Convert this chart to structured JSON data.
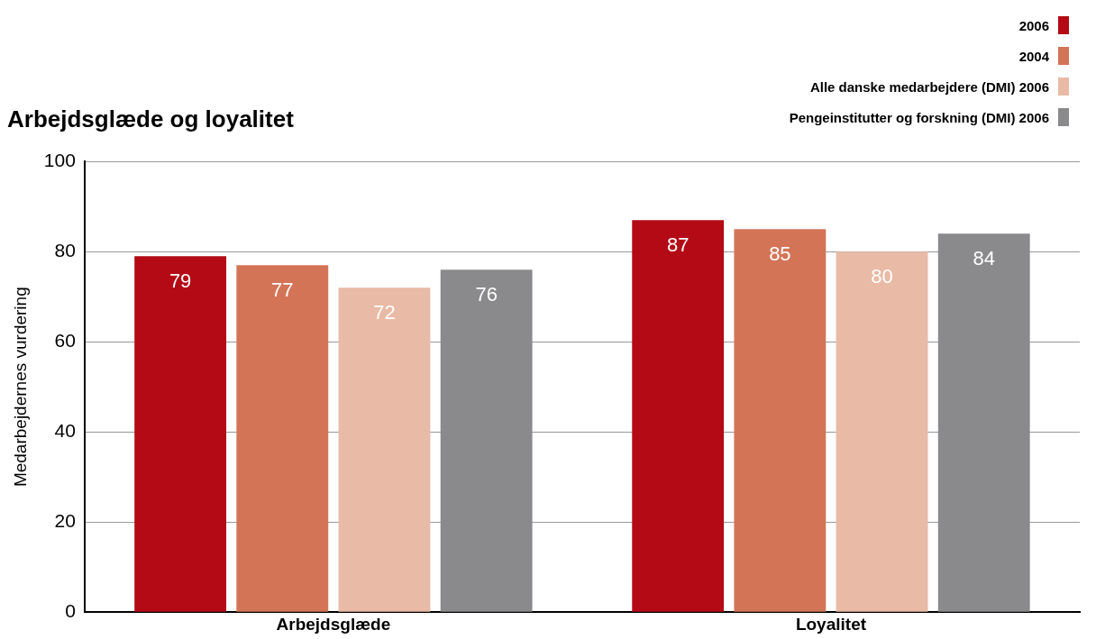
{
  "chart_data": {
    "type": "bar",
    "title": "Arbejdsglæde og loyalitet",
    "ylabel": "Medarbejdernes vurdering",
    "categories": [
      "Arbejdsglæde",
      "Loyalitet"
    ],
    "series": [
      {
        "name": "2006",
        "color": "#b30a15",
        "values": [
          79,
          87
        ]
      },
      {
        "name": "2004",
        "color": "#d47456",
        "values": [
          77,
          85
        ]
      },
      {
        "name": "Alle danske medarbejdere (DMI) 2006",
        "color": "#e9baa5",
        "values": [
          72,
          80
        ]
      },
      {
        "name": "Pengeinstitutter og forskning (DMI) 2006",
        "color": "#8a8a8c",
        "values": [
          76,
          84
        ]
      }
    ],
    "ylim": [
      0,
      100
    ],
    "yticks": [
      0,
      20,
      40,
      60,
      80,
      100
    ],
    "grid": "y",
    "legend": "top right",
    "data_labels": true
  }
}
